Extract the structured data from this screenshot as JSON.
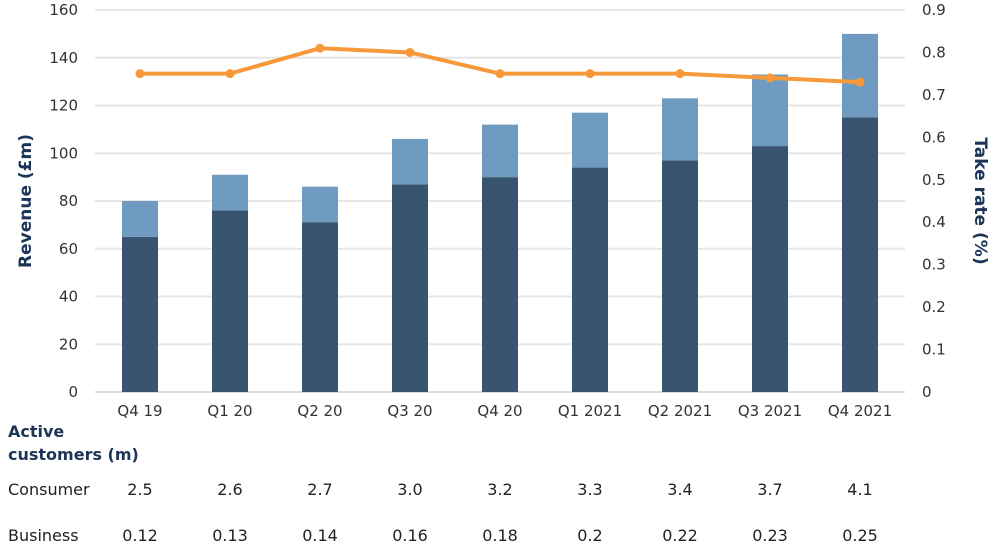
{
  "chart_data": {
    "type": "bar",
    "stacked": true,
    "categories": [
      "Q4 19",
      "Q1 20",
      "Q2 20",
      "Q3 20",
      "Q4 20",
      "Q1 2021",
      "Q2 2021",
      "Q3 2021",
      "Q4 2021"
    ],
    "series": [
      {
        "name": "Revenue (lower segment)",
        "type": "bar",
        "axis": "left",
        "color": "#38546f",
        "values": [
          65,
          76,
          71,
          87,
          90,
          94,
          97,
          103,
          115
        ]
      },
      {
        "name": "Revenue (upper segment)",
        "type": "bar",
        "axis": "left",
        "color": "#6f9bc0",
        "values": [
          15,
          15,
          15,
          19,
          22,
          23,
          26,
          30,
          35
        ]
      },
      {
        "name": "Take rate",
        "type": "line",
        "axis": "right",
        "color": "#f7993a",
        "values": [
          0.75,
          0.75,
          0.81,
          0.8,
          0.75,
          0.75,
          0.75,
          0.74,
          0.73
        ]
      }
    ],
    "ylabel": "Revenue (£m)",
    "ylim": [
      0,
      160
    ],
    "yticks": [
      "0",
      "20",
      "40",
      "60",
      "80",
      "100",
      "120",
      "140",
      "160"
    ],
    "y2label": "Take rate (%)",
    "y2lim": [
      0,
      0.9
    ],
    "y2ticks": [
      "0",
      "0.1",
      "0.2",
      "0.3",
      "0.4",
      "0.5",
      "0.6",
      "0.7",
      "0.8",
      "0.9"
    ],
    "grid": true
  },
  "table": {
    "header": "Active customers (m)",
    "rows": [
      {
        "label": "Consumer",
        "values": [
          "2.5",
          "2.6",
          "2.7",
          "3.0",
          "3.2",
          "3.3",
          "3.4",
          "3.7",
          "4.1"
        ]
      },
      {
        "label": "Business",
        "values": [
          "0.12",
          "0.13",
          "0.14",
          "0.16",
          "0.18",
          "0.2",
          "0.22",
          "0.23",
          "0.25"
        ]
      }
    ]
  }
}
